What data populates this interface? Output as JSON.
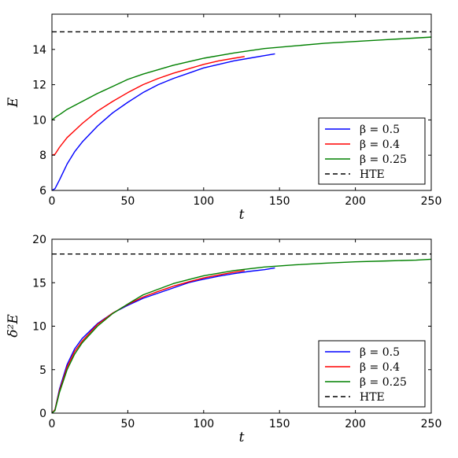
{
  "chart_data": [
    {
      "type": "line",
      "title": "",
      "xlabel": "t",
      "ylabel": "E",
      "xlim": [
        0,
        250
      ],
      "ylim": [
        6,
        16
      ],
      "xticks": [
        0,
        50,
        100,
        150,
        200,
        250
      ],
      "yticks": [
        6,
        8,
        10,
        12,
        14
      ],
      "grid": false,
      "legend_position": "lower-right",
      "series": [
        {
          "name": "β = 0.5",
          "color": "#0000ff",
          "dash": "solid",
          "x": [
            0,
            2,
            5,
            10,
            15,
            20,
            30,
            40,
            50,
            60,
            70,
            80,
            90,
            100,
            110,
            120,
            130,
            140,
            147
          ],
          "y": [
            6.0,
            6.1,
            6.6,
            7.5,
            8.2,
            8.75,
            9.65,
            10.4,
            11.0,
            11.55,
            12.0,
            12.35,
            12.65,
            12.95,
            13.15,
            13.35,
            13.5,
            13.65,
            13.75
          ]
        },
        {
          "name": "β = 0.4",
          "color": "#ff0000",
          "dash": "solid",
          "x": [
            0,
            2,
            5,
            10,
            15,
            20,
            30,
            40,
            50,
            60,
            70,
            80,
            90,
            100,
            110,
            120,
            127
          ],
          "y": [
            8.0,
            8.05,
            8.45,
            9.0,
            9.4,
            9.8,
            10.5,
            11.05,
            11.55,
            12.0,
            12.35,
            12.65,
            12.9,
            13.15,
            13.35,
            13.5,
            13.6
          ]
        },
        {
          "name": "β = 0.25",
          "color": "#008000",
          "dash": "solid",
          "x": [
            0,
            3,
            5,
            10,
            20,
            30,
            40,
            50,
            60,
            80,
            100,
            120,
            140,
            160,
            180,
            200,
            220,
            240,
            250
          ],
          "y": [
            10.0,
            10.2,
            10.3,
            10.6,
            11.05,
            11.5,
            11.9,
            12.3,
            12.6,
            13.1,
            13.5,
            13.8,
            14.05,
            14.2,
            14.35,
            14.45,
            14.55,
            14.65,
            14.7
          ]
        },
        {
          "name": "HTE",
          "color": "#000000",
          "dash": "dashed",
          "x": [
            0,
            250
          ],
          "y": [
            15.0,
            15.0
          ]
        }
      ]
    },
    {
      "type": "line",
      "title": "",
      "xlabel": "t",
      "ylabel": "δ²E",
      "xlim": [
        0,
        250
      ],
      "ylim": [
        0,
        20
      ],
      "xticks": [
        0,
        50,
        100,
        150,
        200,
        250
      ],
      "yticks": [
        0,
        5,
        10,
        15,
        20
      ],
      "grid": false,
      "legend_position": "lower-right",
      "series": [
        {
          "name": "β = 0.5",
          "color": "#0000ff",
          "dash": "solid",
          "x": [
            0,
            2,
            5,
            10,
            15,
            20,
            30,
            40,
            50,
            60,
            70,
            80,
            90,
            100,
            110,
            120,
            130,
            140,
            147
          ],
          "y": [
            0,
            0.4,
            2.8,
            5.6,
            7.4,
            8.6,
            10.3,
            11.5,
            12.4,
            13.2,
            13.8,
            14.4,
            15.0,
            15.4,
            15.75,
            16.05,
            16.3,
            16.5,
            16.7
          ]
        },
        {
          "name": "β = 0.4",
          "color": "#ff0000",
          "dash": "solid",
          "x": [
            0,
            2,
            5,
            10,
            15,
            20,
            30,
            40,
            50,
            60,
            70,
            80,
            90,
            100,
            110,
            120,
            127
          ],
          "y": [
            0,
            0.4,
            2.6,
            5.3,
            7.1,
            8.3,
            10.2,
            11.5,
            12.5,
            13.35,
            14.0,
            14.6,
            15.1,
            15.55,
            15.9,
            16.2,
            16.4
          ]
        },
        {
          "name": "β = 0.25",
          "color": "#008000",
          "dash": "solid",
          "x": [
            0,
            2,
            5,
            10,
            15,
            20,
            30,
            40,
            50,
            60,
            80,
            100,
            120,
            140,
            160,
            180,
            200,
            220,
            240,
            250
          ],
          "y": [
            0,
            0.3,
            2.4,
            5.0,
            6.8,
            8.1,
            10.0,
            11.45,
            12.55,
            13.6,
            14.9,
            15.8,
            16.4,
            16.8,
            17.05,
            17.25,
            17.4,
            17.5,
            17.6,
            17.7
          ]
        },
        {
          "name": "HTE",
          "color": "#000000",
          "dash": "dashed",
          "x": [
            0,
            250
          ],
          "y": [
            18.3,
            18.3
          ]
        }
      ]
    }
  ]
}
